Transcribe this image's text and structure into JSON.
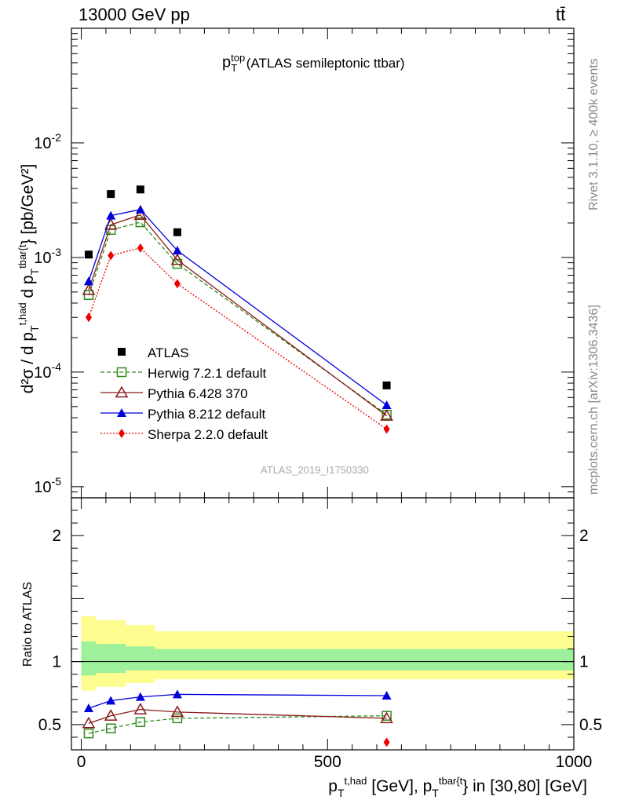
{
  "header": {
    "energy": "13000 GeV pp",
    "process": "tt̄",
    "title_base": "p",
    "title_sup": "top",
    "title_sub": "T",
    "title_rest": "(ATLAS semileptonic ttbar)",
    "analysis_id": "ATLAS_2019_I1750330",
    "rivet_label": "Rivet 3.1.10, ≥ 400k events",
    "mcplots_label": "mcplots.cern.ch [arXiv:1306.3436]"
  },
  "axes": {
    "ylabel_main": "d²σ / d p_T^{t,had} d p_T^{tbar{t}} [pb/GeV²]",
    "ylabel_ratio": "Ratio to ATLAS",
    "xlabel": "p_T^{t,had} [GeV], p_T^{tbar{t}} in [30,80] [GeV]",
    "xlim": [
      -20,
      1000
    ],
    "ylim_main": [
      8e-06,
      0.1
    ],
    "ylim_ratio": [
      0.3,
      2.3
    ],
    "x_ticks": [
      "0",
      "500",
      "1000"
    ],
    "main_ticks": [
      "10^{-5}",
      "10^{-4}",
      "10^{-3}",
      "10^{-2}"
    ],
    "ratio_ticks": [
      "0.5",
      "1",
      "2"
    ]
  },
  "chart_data": {
    "type": "scatter",
    "x": [
      15,
      60,
      120,
      195,
      620
    ],
    "x_bins": [
      [
        0,
        30
      ],
      [
        30,
        90
      ],
      [
        90,
        150
      ],
      [
        150,
        250
      ],
      [
        250,
        1000
      ]
    ],
    "series": [
      {
        "name": "ATLAS",
        "color": "#000000",
        "marker": "square",
        "values": [
          0.00106,
          0.00358,
          0.00392,
          0.00166,
          7.65e-05
        ]
      },
      {
        "name": "Herwig 7.2.1 default",
        "color": "#2e8b1a",
        "marker": "open-square",
        "line": "dashed",
        "values": [
          0.00047,
          0.00174,
          0.00203,
          0.00088,
          4.25e-05
        ]
      },
      {
        "name": "Pythia 6.428 370",
        "color": "#8b1a1a",
        "marker": "open-triangle",
        "line": "solid",
        "values": [
          0.00052,
          0.00193,
          0.00235,
          0.00095,
          4.15e-05
        ]
      },
      {
        "name": "Pythia 8.212 default",
        "color": "#0000dd",
        "marker": "triangle",
        "line": "solid",
        "values": [
          0.00062,
          0.00232,
          0.00262,
          0.00115,
          5.15e-05
        ]
      },
      {
        "name": "Sherpa 2.2.0 default",
        "color": "#ee0000",
        "marker": "diamond",
        "line": "dotted",
        "values": [
          0.0003,
          0.00104,
          0.00121,
          0.00059,
          3.18e-05
        ]
      }
    ],
    "ratio": {
      "Herwig 7.2.1 default": [
        0.43,
        0.47,
        0.52,
        0.55,
        0.57
      ],
      "Pythia 6.428 370": [
        0.51,
        0.57,
        0.62,
        0.6,
        0.55
      ],
      "Pythia 8.212 default": [
        0.63,
        0.69,
        0.72,
        0.74,
        0.73
      ],
      "Sherpa 2.2.0 default": [
        null,
        null,
        null,
        null,
        0.36
      ]
    },
    "ratio_band_stat": [
      [
        0.89,
        1.16
      ],
      [
        0.91,
        1.14
      ],
      [
        0.93,
        1.12
      ],
      [
        0.93,
        1.1
      ],
      [
        0.93,
        1.1
      ]
    ],
    "ratio_band_total": [
      [
        0.77,
        1.36
      ],
      [
        0.8,
        1.33
      ],
      [
        0.83,
        1.29
      ],
      [
        0.86,
        1.24
      ],
      [
        0.86,
        1.24
      ]
    ],
    "colors": {
      "band_stat": "#9ef09a",
      "band_total": "#fdfd90"
    }
  }
}
